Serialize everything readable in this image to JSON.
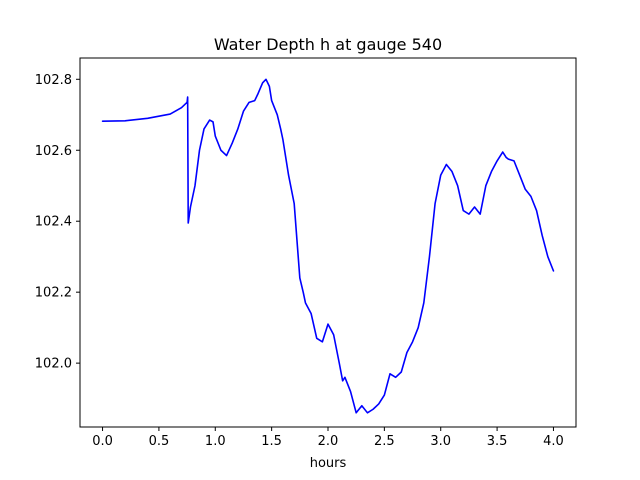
{
  "chart_data": {
    "type": "line",
    "title": "Water Depth h at gauge 540",
    "xlabel": "hours",
    "ylabel": "",
    "xlim": [
      -0.2,
      4.2
    ],
    "ylim": [
      101.82,
      102.86
    ],
    "grid": false,
    "xticks": [
      {
        "value": 0.0,
        "label": "0.0"
      },
      {
        "value": 0.5,
        "label": "0.5"
      },
      {
        "value": 1.0,
        "label": "1.0"
      },
      {
        "value": 1.5,
        "label": "1.5"
      },
      {
        "value": 2.0,
        "label": "2.0"
      },
      {
        "value": 2.5,
        "label": "2.5"
      },
      {
        "value": 3.0,
        "label": "3.0"
      },
      {
        "value": 3.5,
        "label": "3.5"
      },
      {
        "value": 4.0,
        "label": "4.0"
      }
    ],
    "yticks": [
      {
        "value": 102.0,
        "label": "102.0"
      },
      {
        "value": 102.2,
        "label": "102.2"
      },
      {
        "value": 102.4,
        "label": "102.4"
      },
      {
        "value": 102.6,
        "label": "102.6"
      },
      {
        "value": 102.8,
        "label": "102.8"
      }
    ],
    "series": [
      {
        "color": "#0000ff",
        "x": [
          0.0,
          0.2,
          0.4,
          0.6,
          0.7,
          0.75,
          0.755,
          0.76,
          0.78,
          0.82,
          0.86,
          0.9,
          0.95,
          0.98,
          1.0,
          1.05,
          1.1,
          1.15,
          1.2,
          1.25,
          1.3,
          1.35,
          1.38,
          1.42,
          1.45,
          1.48,
          1.5,
          1.55,
          1.58,
          1.6,
          1.65,
          1.7,
          1.75,
          1.78,
          1.8,
          1.85,
          1.9,
          1.95,
          2.0,
          2.05,
          2.1,
          2.13,
          2.15,
          2.2,
          2.25,
          2.3,
          2.35,
          2.4,
          2.45,
          2.5,
          2.55,
          2.6,
          2.65,
          2.7,
          2.75,
          2.8,
          2.85,
          2.9,
          2.95,
          3.0,
          3.05,
          3.1,
          3.15,
          3.2,
          3.25,
          3.3,
          3.35,
          3.4,
          3.45,
          3.5,
          3.55,
          3.58,
          3.6,
          3.65,
          3.7,
          3.75,
          3.8,
          3.85,
          3.9,
          3.95,
          4.0
        ],
        "y": [
          102.682,
          102.683,
          102.69,
          102.702,
          102.72,
          102.735,
          102.75,
          102.395,
          102.44,
          102.5,
          102.6,
          102.66,
          102.685,
          102.68,
          102.64,
          102.6,
          102.585,
          102.62,
          102.66,
          102.71,
          102.735,
          102.74,
          102.76,
          102.79,
          102.8,
          102.78,
          102.74,
          102.7,
          102.66,
          102.63,
          102.53,
          102.45,
          102.24,
          102.2,
          102.17,
          102.14,
          102.07,
          102.06,
          102.11,
          102.08,
          102.0,
          101.95,
          101.96,
          101.92,
          101.86,
          101.88,
          101.86,
          101.87,
          101.885,
          101.91,
          101.97,
          101.96,
          101.975,
          102.03,
          102.06,
          102.1,
          102.17,
          102.3,
          102.45,
          102.53,
          102.56,
          102.54,
          102.5,
          102.43,
          102.42,
          102.44,
          102.42,
          102.5,
          102.54,
          102.57,
          102.595,
          102.58,
          102.575,
          102.57,
          102.53,
          102.49,
          102.47,
          102.43,
          102.36,
          102.3,
          102.26
        ]
      }
    ]
  }
}
